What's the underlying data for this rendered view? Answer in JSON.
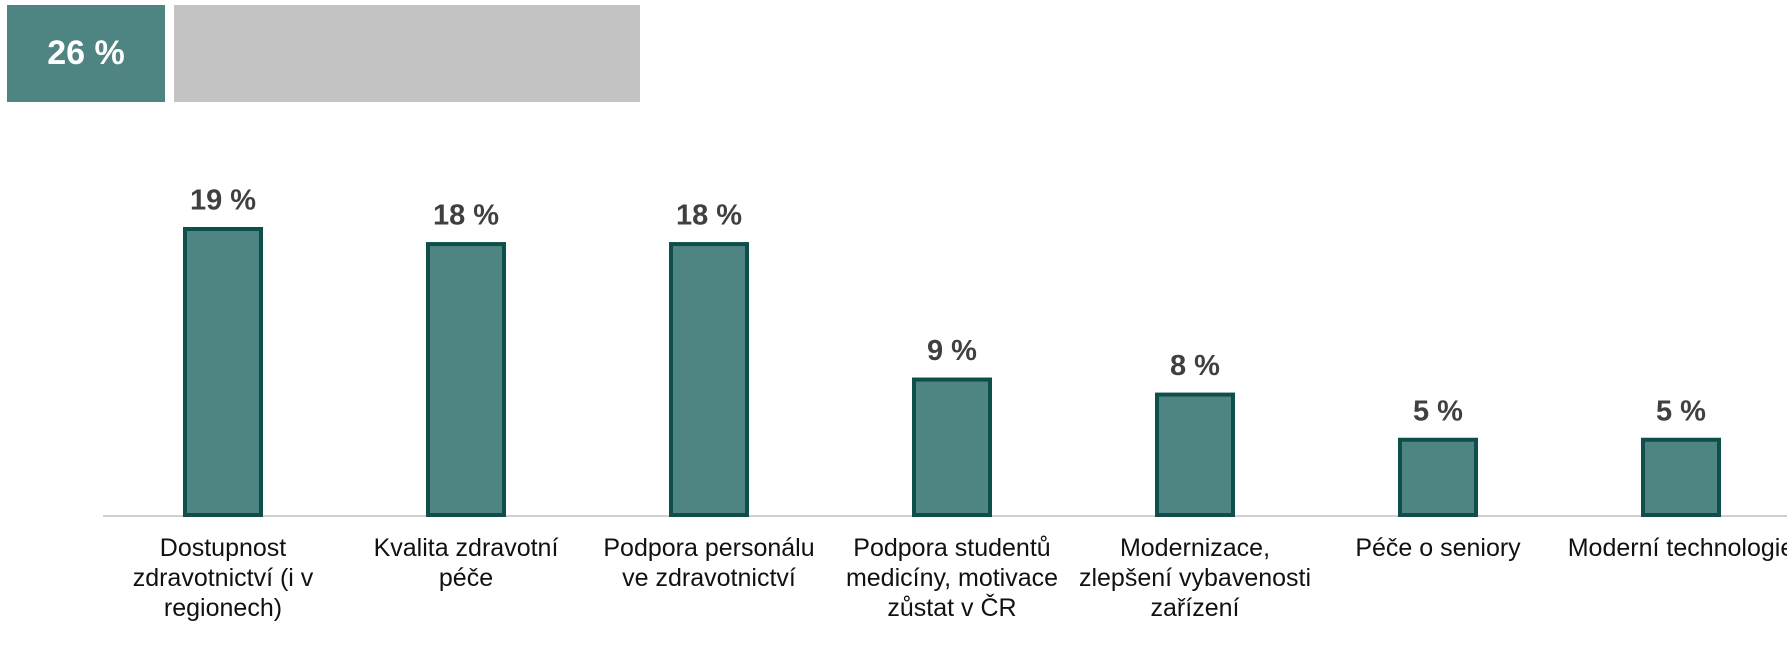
{
  "chart_data": {
    "type": "bar",
    "highlight": {
      "value": 26,
      "value_label": "26 %"
    },
    "categories": [
      "Dostupnost zdravotnictví (i v regionech)",
      "Kvalita zdravotní péče",
      "Podpora personálu ve zdravotnictví",
      "Podpora studentů medicíny, motivace zůstat v ČR",
      "Modernizace, zlepšení vybavenosti zařízení",
      "Péče o seniory",
      "Moderní technologie"
    ],
    "values": [
      19,
      18,
      18,
      9,
      8,
      5,
      5
    ],
    "value_labels": [
      "19 %",
      "18 %",
      "18 %",
      "9 %",
      "8 %",
      "5 %",
      "5 %"
    ],
    "color": "#4e8482",
    "ylim": [
      0,
      19
    ]
  }
}
